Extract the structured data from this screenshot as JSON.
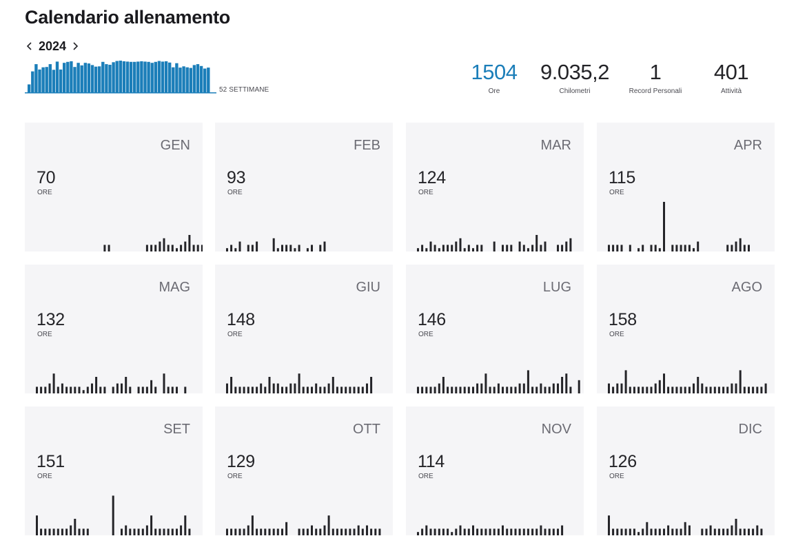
{
  "header": {
    "title": "Calendario allenamento"
  },
  "year_nav": {
    "year": "2024",
    "prev_icon": "chevron-left-icon",
    "next_icon": "chevron-right-icon"
  },
  "weekly_summary": {
    "label": "52 SETTIMANE",
    "color": "#1b7eb9",
    "weekly_relative_levels": [
      0.25,
      0.66,
      0.89,
      0.72,
      0.79,
      0.8,
      0.89,
      0.71,
      0.97,
      0.72,
      0.93,
      0.96,
      0.98,
      0.8,
      0.93,
      0.85,
      0.93,
      0.91,
      0.86,
      0.81,
      0.82,
      0.96,
      0.89,
      0.87,
      0.95,
      0.99,
      1.0,
      0.98,
      0.97,
      0.96,
      0.96,
      0.97,
      0.98,
      0.97,
      0.96,
      0.93,
      0.96,
      0.99,
      0.97,
      0.98,
      0.94,
      0.79,
      0.92,
      0.78,
      0.82,
      0.79,
      0.77,
      0.86,
      0.89,
      0.83,
      0.75,
      0.78
    ]
  },
  "stats": [
    {
      "value": "1504",
      "label": "Ore",
      "accent": true
    },
    {
      "value": "9.035,2",
      "label": "Chilometri",
      "accent": false
    },
    {
      "value": "1",
      "label": "Record Personali",
      "accent": false
    },
    {
      "value": "401",
      "label": "Attività",
      "accent": false
    }
  ],
  "months": [
    {
      "name": "GEN",
      "hours": "70",
      "unit": "ORE",
      "daily": [
        0,
        0,
        0,
        0,
        0,
        0,
        0,
        0,
        0,
        0,
        0,
        0,
        0,
        0,
        0,
        0,
        2,
        2,
        0,
        0,
        0,
        0,
        0,
        0,
        0,
        0,
        2,
        2,
        2,
        3,
        4,
        2,
        2,
        1,
        2,
        3,
        5,
        2,
        2,
        2,
        0,
        0
      ]
    },
    {
      "name": "FEB",
      "hours": "93",
      "unit": "ORE",
      "daily": [
        1,
        2,
        1,
        3,
        0,
        2,
        2,
        3,
        0,
        0,
        0,
        4,
        1,
        2,
        2,
        2,
        1,
        2,
        0,
        1,
        2,
        0,
        2,
        3,
        0,
        0,
        0,
        0,
        0,
        0,
        0,
        0,
        0,
        0,
        0,
        0,
        0,
        0,
        0,
        0,
        0,
        0
      ]
    },
    {
      "name": "MAR",
      "hours": "124",
      "unit": "ORE",
      "daily": [
        1,
        2,
        1,
        3,
        2,
        1,
        2,
        2,
        2,
        3,
        4,
        1,
        2,
        1,
        2,
        2,
        0,
        0,
        3,
        0,
        2,
        2,
        2,
        0,
        3,
        2,
        1,
        2,
        5,
        2,
        3,
        0,
        0,
        2,
        2,
        3,
        4,
        0,
        0,
        0,
        0,
        0
      ]
    },
    {
      "name": "APR",
      "hours": "115",
      "unit": "ORE",
      "daily": [
        2,
        2,
        2,
        2,
        0,
        2,
        0,
        1,
        2,
        0,
        2,
        2,
        1,
        15,
        0,
        2,
        2,
        2,
        2,
        2,
        1,
        3,
        0,
        0,
        0,
        0,
        0,
        0,
        2,
        2,
        3,
        4,
        2,
        2,
        0,
        0,
        0,
        0,
        0,
        0,
        0,
        0
      ]
    },
    {
      "name": "MAG",
      "hours": "132",
      "unit": "ORE",
      "daily": [
        2,
        2,
        2,
        3,
        6,
        2,
        3,
        2,
        2,
        2,
        2,
        1,
        2,
        3,
        5,
        2,
        2,
        0,
        2,
        3,
        3,
        5,
        2,
        0,
        2,
        2,
        2,
        4,
        2,
        0,
        6,
        2,
        2,
        2,
        0,
        2,
        0,
        0,
        0,
        0,
        0,
        0
      ]
    },
    {
      "name": "GIU",
      "hours": "148",
      "unit": "ORE",
      "daily": [
        3,
        5,
        2,
        2,
        2,
        2,
        2,
        2,
        3,
        2,
        5,
        3,
        3,
        2,
        2,
        3,
        3,
        6,
        2,
        2,
        2,
        3,
        2,
        2,
        3,
        5,
        2,
        2,
        2,
        2,
        2,
        2,
        2,
        3,
        5,
        0,
        0,
        0,
        0,
        0,
        0,
        0
      ]
    },
    {
      "name": "LUG",
      "hours": "146",
      "unit": "ORE",
      "daily": [
        2,
        2,
        2,
        2,
        2,
        3,
        5,
        2,
        2,
        2,
        2,
        2,
        2,
        2,
        3,
        3,
        6,
        2,
        2,
        3,
        2,
        2,
        2,
        2,
        3,
        3,
        7,
        2,
        2,
        3,
        2,
        2,
        3,
        3,
        5,
        6,
        2,
        0,
        4,
        0,
        0,
        0
      ]
    },
    {
      "name": "AGO",
      "hours": "158",
      "unit": "ORE",
      "daily": [
        3,
        2,
        3,
        3,
        7,
        2,
        2,
        2,
        2,
        2,
        2,
        3,
        4,
        6,
        2,
        2,
        2,
        2,
        2,
        2,
        3,
        5,
        3,
        2,
        2,
        2,
        2,
        2,
        2,
        3,
        3,
        7,
        2,
        2,
        2,
        2,
        2,
        3,
        0,
        0,
        0,
        0
      ]
    },
    {
      "name": "SET",
      "hours": "151",
      "unit": "ORE",
      "daily": [
        6,
        2,
        2,
        2,
        2,
        2,
        2,
        2,
        3,
        5,
        2,
        2,
        2,
        0,
        0,
        0,
        0,
        0,
        12,
        0,
        2,
        3,
        2,
        2,
        2,
        2,
        3,
        6,
        2,
        2,
        2,
        2,
        2,
        2,
        3,
        6,
        2,
        0,
        0,
        0,
        0,
        0
      ]
    },
    {
      "name": "OTT",
      "hours": "129",
      "unit": "ORE",
      "daily": [
        2,
        2,
        2,
        2,
        2,
        3,
        6,
        2,
        2,
        2,
        2,
        2,
        2,
        2,
        4,
        0,
        0,
        2,
        2,
        2,
        3,
        2,
        2,
        3,
        6,
        2,
        2,
        2,
        2,
        2,
        2,
        3,
        2,
        3,
        2,
        2,
        2,
        0,
        0,
        0,
        0,
        0
      ]
    },
    {
      "name": "NOV",
      "hours": "114",
      "unit": "ORE",
      "daily": [
        1,
        2,
        3,
        2,
        2,
        2,
        2,
        2,
        1,
        2,
        3,
        2,
        2,
        3,
        2,
        2,
        2,
        2,
        2,
        2,
        3,
        2,
        2,
        2,
        2,
        2,
        2,
        2,
        2,
        3,
        2,
        2,
        2,
        2,
        3,
        0,
        0,
        0,
        0,
        0,
        0,
        0
      ]
    },
    {
      "name": "DIC",
      "hours": "126",
      "unit": "ORE",
      "daily": [
        6,
        2,
        2,
        2,
        2,
        2,
        2,
        1,
        2,
        4,
        2,
        2,
        2,
        2,
        3,
        2,
        2,
        2,
        4,
        3,
        0,
        0,
        2,
        2,
        3,
        2,
        2,
        2,
        2,
        3,
        5,
        2,
        2,
        2,
        2,
        3,
        2,
        0,
        0,
        0,
        0,
        0
      ]
    }
  ]
}
